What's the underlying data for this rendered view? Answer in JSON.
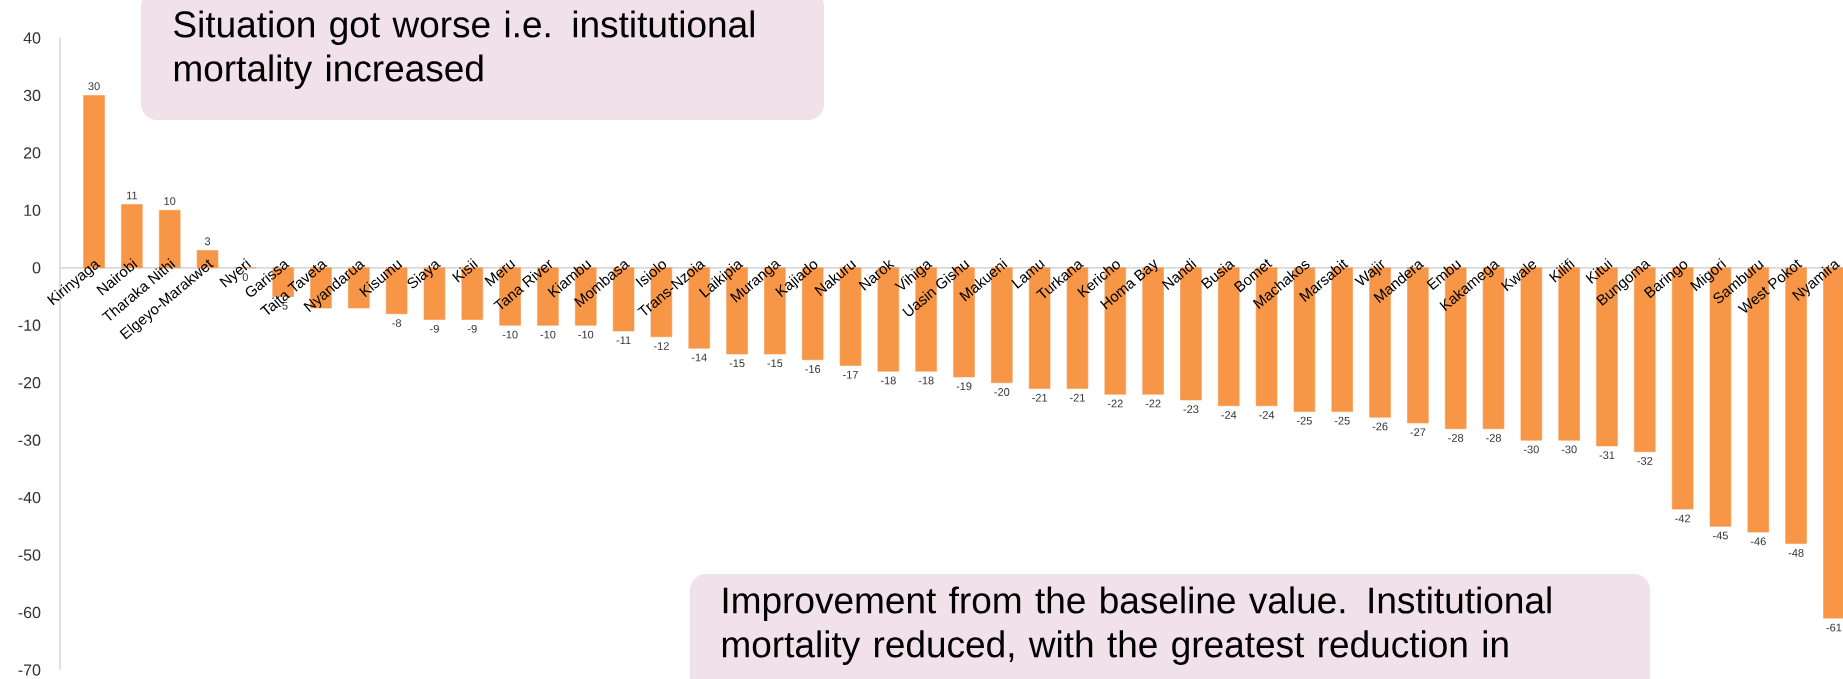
{
  "chart_data": {
    "type": "bar",
    "categories": [
      "Kirinyaga",
      "Nairobi",
      "Tharaka Nithi",
      "Elgeyo-Marakwet",
      "Nyeri",
      "Garissa",
      "Taita Taveta",
      "Nyandarua",
      "Kisumu",
      "Siaya",
      "Kisii",
      "Meru",
      "Tana River",
      "Kiambu",
      "Mombasa",
      "Isiolo",
      "Trans-Nzoia",
      "Laikipia",
      "Muranga",
      "Kajiado",
      "Nakuru",
      "Narok",
      "Vihiga",
      "Uasin Gishu",
      "Makueni",
      "Lamu",
      "Turkana",
      "Kericho",
      "Homa Bay",
      "Nandi",
      "Busia",
      "Bomet",
      "Machakos",
      "Marsabit",
      "Wajir",
      "Mandera",
      "Embu",
      "Kakamega",
      "Kwale",
      "Kilifi",
      "Kitui",
      "Bungoma",
      "Baringo",
      "Migori",
      "Samburu",
      "West Pokot",
      "Nyamira"
    ],
    "values": [
      30,
      11,
      10,
      3,
      0,
      -5,
      -7,
      -7,
      -8,
      -9,
      -9,
      -10,
      -10,
      -10,
      -11,
      -12,
      -14,
      -15,
      -15,
      -16,
      -17,
      -18,
      -18,
      -19,
      -20,
      -21,
      -21,
      -22,
      -22,
      -23,
      -24,
      -24,
      -25,
      -25,
      -26,
      -27,
      -28,
      -28,
      -30,
      -30,
      -31,
      -32,
      -42,
      -45,
      -46,
      -48,
      -61
    ],
    "color": "#f79646",
    "value_labels": [
      "30",
      "11",
      "10",
      "3",
      "0",
      "-5",
      null,
      null,
      "-8",
      "-9",
      "-9",
      "-10",
      "-10",
      "-10",
      "-11",
      "-12",
      "-14",
      "-15",
      "-15",
      "-16",
      "-17",
      "-18",
      "-18",
      "-19",
      "-20",
      "-21",
      "-21",
      "-22",
      "-22",
      "-23",
      "-24",
      "-24",
      "-25",
      "-25",
      "-26",
      "-27",
      "-28",
      "-28",
      "-30",
      "-30",
      "-31",
      "-32",
      "-42",
      "-45",
      "-46",
      "-48",
      "-61"
    ],
    "ylim": [
      -70,
      40
    ],
    "yticks": [
      -70,
      -60,
      -50,
      -40,
      -30,
      -20,
      -10,
      0,
      10,
      20,
      30,
      40
    ],
    "grid": false,
    "annotations": [
      "Situation got worse i.e. institutional mortality increased",
      "Improvement from the baseline value. Institutional mortality reduced, with the greatest reduction in"
    ]
  }
}
